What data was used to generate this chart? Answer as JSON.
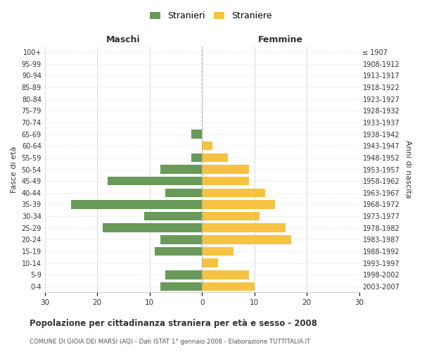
{
  "age_groups": [
    "0-4",
    "5-9",
    "10-14",
    "15-19",
    "20-24",
    "25-29",
    "30-34",
    "35-39",
    "40-44",
    "45-49",
    "50-54",
    "55-59",
    "60-64",
    "65-69",
    "70-74",
    "75-79",
    "80-84",
    "85-89",
    "90-94",
    "95-99",
    "100+"
  ],
  "birth_years": [
    "2003-2007",
    "1998-2002",
    "1993-1997",
    "1988-1992",
    "1983-1987",
    "1978-1982",
    "1973-1977",
    "1968-1972",
    "1963-1967",
    "1958-1962",
    "1953-1957",
    "1948-1952",
    "1943-1947",
    "1938-1942",
    "1933-1937",
    "1928-1932",
    "1923-1927",
    "1918-1922",
    "1913-1917",
    "1908-1912",
    "≤ 1907"
  ],
  "males": [
    8,
    7,
    0,
    9,
    8,
    19,
    11,
    25,
    7,
    18,
    8,
    2,
    0,
    2,
    0,
    0,
    0,
    0,
    0,
    0,
    0
  ],
  "females": [
    10,
    9,
    3,
    6,
    17,
    16,
    11,
    14,
    12,
    9,
    9,
    5,
    2,
    0,
    0,
    0,
    0,
    0,
    0,
    0,
    0
  ],
  "male_color": "#6a9a5a",
  "female_color": "#f5c242",
  "bar_height": 0.75,
  "xlim": 30,
  "title": "Popolazione per cittadinanza straniera per età e sesso - 2008",
  "subtitle": "COMUNE DI GIOIA DEI MARSI (AQ) - Dati ISTAT 1° gennaio 2008 - Elaborazione TUTTITALIA.IT",
  "ylabel_left": "Fasce di età",
  "ylabel_right": "Anni di nascita",
  "legend_stranieri": "Stranieri",
  "legend_straniere": "Straniere",
  "header_maschi": "Maschi",
  "header_femmine": "Femmine",
  "grid_color": "#cccccc",
  "bg_color": "#ffffff",
  "font_color": "#333333"
}
